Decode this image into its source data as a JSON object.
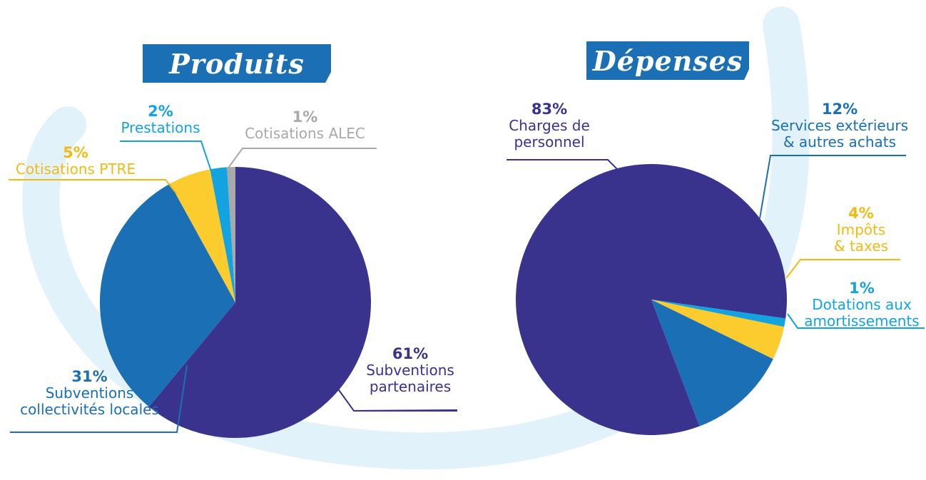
{
  "colors": {
    "purple": "#3a338e",
    "blue": "#1a6fb5",
    "yellow": "#fccc2f",
    "cyan": "#12a3e0",
    "grey": "#a9a9ac",
    "swoosh": "#e2f2fb"
  },
  "chart_data": [
    {
      "type": "pie",
      "title": "Produits",
      "slices": [
        {
          "pct_label": "61%",
          "label": "Subventions partenaires",
          "value": 61,
          "color": "#3a338e"
        },
        {
          "pct_label": "31%",
          "label": "Subventions collectivités locales",
          "value": 31,
          "color": "#1a6fb5"
        },
        {
          "pct_label": "5%",
          "label": "Cotisations PTRE",
          "value": 5,
          "color": "#fccc2f"
        },
        {
          "pct_label": "2%",
          "label": "Prestations",
          "value": 2,
          "color": "#12a3e0"
        },
        {
          "pct_label": "1%",
          "label": "Cotisations ALEC",
          "value": 1,
          "color": "#a9a9ac"
        }
      ]
    },
    {
      "type": "pie",
      "title": "Dépenses",
      "slices": [
        {
          "pct_label": "83%",
          "label": "Charges de personnel",
          "value": 83,
          "color": "#3a338e"
        },
        {
          "pct_label": "12%",
          "label": "Services extérieurs & autres achats",
          "value": 12,
          "color": "#1a6fb5"
        },
        {
          "pct_label": "4%",
          "label": "Impôts & taxes",
          "value": 4,
          "color": "#fccc2f"
        },
        {
          "pct_label": "1%",
          "label": "Dotations aux amortissements",
          "value": 1,
          "color": "#12a3e0"
        }
      ]
    }
  ],
  "labels": {
    "produits": {
      "partenaires_line2": "partenaires",
      "collectivites_line2": "collectivités locales"
    },
    "depenses": {
      "charges_line1": "Charges de",
      "charges_line2": "personnel",
      "services_line1": "Services extérieurs",
      "services_line2": "& autres achats",
      "impots_line1": "Impôts",
      "impots_line2": "& taxes",
      "dotations_line1": "Dotations aux",
      "dotations_line2": "amortissements"
    },
    "subventions_word": "Subventions"
  }
}
